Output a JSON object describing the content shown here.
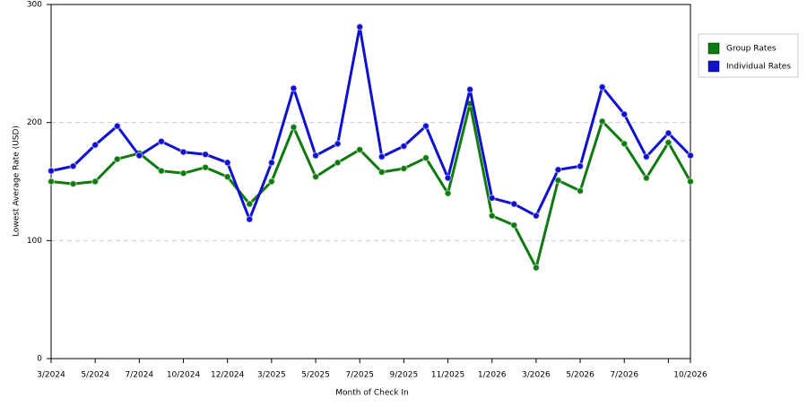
{
  "chart_data": {
    "type": "line",
    "x_label": "Month of Check In",
    "y_label": "Lowest Average Rate (USD)",
    "categories": [
      "3/2024",
      null,
      "5/2024",
      null,
      "7/2024",
      null,
      "10/2024",
      null,
      "12/2024",
      null,
      "3/2025",
      null,
      "5/2025",
      null,
      "7/2025",
      null,
      "9/2025",
      null,
      "11/2025",
      null,
      "1/2026",
      null,
      "3/2026",
      null,
      "5/2026",
      null,
      "7/2026",
      null,
      null,
      "10/2026"
    ],
    "series": [
      {
        "name": "Group Rates",
        "color": "#0f7a0f",
        "values": [
          150,
          148,
          150,
          169,
          174,
          159,
          157,
          162,
          154,
          131,
          150,
          196,
          154,
          166,
          177,
          158,
          161,
          170,
          140,
          216,
          121,
          113,
          77,
          151,
          142,
          201,
          182,
          153,
          183,
          150
        ]
      },
      {
        "name": "Individual Rates",
        "color": "#1010d0",
        "values": [
          159,
          163,
          181,
          197,
          172,
          184,
          175,
          173,
          166,
          118,
          166,
          229,
          172,
          182,
          281,
          171,
          180,
          197,
          153,
          228,
          136,
          131,
          121,
          160,
          163,
          230,
          207,
          171,
          191,
          172
        ]
      }
    ],
    "ylim": [
      0,
      300
    ],
    "yticks": [
      0,
      100,
      200,
      300
    ],
    "grid": true,
    "legend": "right"
  }
}
